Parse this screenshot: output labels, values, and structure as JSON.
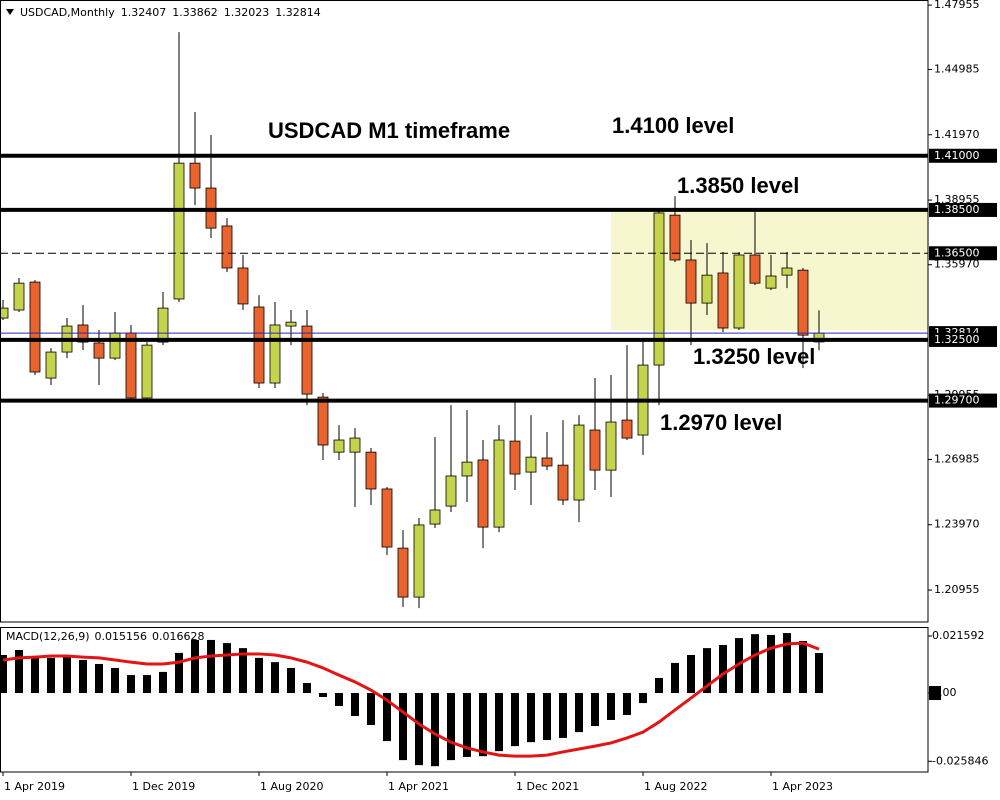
{
  "chart_data": {
    "type": "candlestick",
    "title": "USDCAD M1 timeframe",
    "symbol": "USDCAD,Monthly",
    "categories": [
      "1 Apr 2019",
      null,
      null,
      null,
      null,
      null,
      null,
      null,
      "1 Dec 2019",
      null,
      null,
      null,
      null,
      null,
      null,
      null,
      "1 Aug 2020",
      null,
      null,
      null,
      null,
      null,
      null,
      null,
      "1 Apr 2021",
      null,
      null,
      null,
      null,
      null,
      null,
      null,
      "1 Dec 2021",
      null,
      null,
      null,
      null,
      null,
      null,
      null,
      "1 Aug 2022",
      null,
      null,
      null,
      null,
      null,
      null,
      null,
      "1 Apr 2023",
      null,
      null,
      null
    ],
    "open": [
      1.3351,
      1.3388,
      1.3517,
      1.3074,
      1.3194,
      1.3319,
      1.3236,
      1.3166,
      1.3282,
      1.2982,
      1.324,
      1.3439,
      1.4066,
      1.3951,
      1.3776,
      1.3582,
      1.3402,
      1.3051,
      1.3314,
      1.3314,
      1.2986,
      1.2732,
      1.2732,
      1.2732,
      1.2562,
      1.2289,
      1.2063,
      1.24,
      1.2483,
      1.2622,
      1.2696,
      1.2386,
      1.2783,
      1.264,
      1.2705,
      1.2672,
      1.2511,
      1.2834,
      1.2649,
      1.288,
      1.2811,
      1.3134,
      1.3826,
      1.3619,
      1.342,
      1.3559,
      1.3305,
      1.3642,
      1.3489,
      1.3549,
      1.3572,
      1.32407
    ],
    "high": [
      1.3434,
      1.3536,
      1.3526,
      1.3212,
      1.3351,
      1.3411,
      1.3296,
      1.3379,
      1.3319,
      1.324,
      1.3471,
      1.4671,
      1.4302,
      1.4196,
      1.3812,
      1.3642,
      1.3457,
      1.3425,
      1.3388,
      1.3388,
      1.3005,
      1.2857,
      1.2843,
      1.2751,
      1.2571,
      1.2372,
      1.2428,
      1.2802,
      1.2949,
      1.2926,
      1.2788,
      1.2857,
      1.2963,
      1.2903,
      1.2825,
      1.288,
      1.2903,
      1.3074,
      1.3088,
      1.3226,
      1.3249,
      1.3849,
      1.3914,
      1.3711,
      1.3697,
      1.3656,
      1.3656,
      1.384,
      1.3642,
      1.3656,
      1.3582,
      1.33862
    ],
    "low": [
      1.3342,
      1.3379,
      1.3088,
      1.3042,
      1.3166,
      1.3203,
      1.3042,
      1.3157,
      1.2972,
      1.2972,
      1.3226,
      1.3425,
      1.3872,
      1.372,
      1.3563,
      1.3388,
      1.3028,
      1.3028,
      1.3226,
      1.2949,
      1.2696,
      1.2696,
      1.2479,
      1.2488,
      1.2257,
      1.2017,
      1.2012,
      1.2382,
      1.2456,
      1.2502,
      1.2289,
      1.2363,
      1.2557,
      1.2488,
      1.2649,
      1.2488,
      1.2409,
      1.2557,
      1.2525,
      1.2788,
      1.2719,
      1.2949,
      1.3609,
      1.3226,
      1.3365,
      1.3286,
      1.3296,
      1.3503,
      1.348,
      1.3489,
      1.312,
      1.32023
    ],
    "close": [
      1.3397,
      1.3512,
      1.3102,
      1.3194,
      1.3314,
      1.324,
      1.3166,
      1.3282,
      1.2982,
      1.3226,
      1.3397,
      1.4066,
      1.3951,
      1.3766,
      1.3582,
      1.3416,
      1.3051,
      1.3319,
      1.3332,
      1.3,
      1.2765,
      1.2788,
      1.2797,
      1.2562,
      1.2294,
      1.2063,
      1.2396,
      1.2465,
      1.2622,
      1.2686,
      1.2386,
      1.2788,
      1.2631,
      1.2709,
      1.2668,
      1.2511,
      1.2857,
      1.2649,
      1.2871,
      1.2797,
      1.3134,
      1.3836,
      1.3619,
      1.342,
      1.3549,
      1.3305,
      1.3642,
      1.3512,
      1.3545,
      1.3582,
      1.3272,
      1.32814
    ],
    "colors": {
      "up": "#c6d34c",
      "down": "#e8632e",
      "zone": "#f7f7cf",
      "price_line": "#2a2aa8"
    },
    "ylim": [
      1.1948,
      1.4819
    ],
    "yticks": [
      1.47955,
      1.44985,
      {
        "value": 1.4197,
        "label": "1.41970"
      },
      1.38955,
      {
        "value": 1.3597,
        "label": "1.35970"
      },
      1.29955,
      1.26985,
      {
        "value": 1.2397,
        "label": "1.23970"
      },
      1.20955
    ],
    "levels": [
      {
        "value": 1.41,
        "label": "1.41000",
        "text": "1.4100 level",
        "style": "solid"
      },
      {
        "value": 1.385,
        "label": "1.38500",
        "text": "1.3850 level",
        "style": "solid"
      },
      {
        "value": 1.365,
        "label": "1.36500",
        "style": "dashed"
      },
      {
        "value": 1.325,
        "label": "1.32500",
        "text": "1.3250 level",
        "style": "solid"
      },
      {
        "value": 1.297,
        "label": "1.29700",
        "text": "1.2970 level",
        "style": "solid"
      }
    ],
    "zone": [
      1.3295,
      1.385
    ],
    "indicator": {
      "type": "macd",
      "name": "MACD(12,26,9)",
      "histogram": [
        0.0144,
        0.0163,
        0.014,
        0.0133,
        0.014,
        0.0125,
        0.011,
        0.0095,
        0.0068,
        0.0068,
        0.008,
        0.0152,
        0.0201,
        0.0201,
        0.0189,
        0.017,
        0.0133,
        0.0117,
        0.0095,
        0.0038,
        -0.0015,
        -0.0049,
        -0.0087,
        -0.0121,
        -0.0182,
        -0.0254,
        -0.0273,
        -0.0277,
        -0.0254,
        -0.0242,
        -0.0239,
        -0.022,
        -0.0201,
        -0.0186,
        -0.0178,
        -0.017,
        -0.0148,
        -0.0125,
        -0.0102,
        -0.0083,
        -0.0038,
        0.0057,
        0.0114,
        0.0144,
        0.017,
        0.0182,
        0.0208,
        0.0223,
        0.022,
        0.0227,
        0.0197,
        0.015156
      ],
      "signal": [
        0.0125,
        0.0133,
        0.0136,
        0.014,
        0.014,
        0.0136,
        0.0133,
        0.0125,
        0.0117,
        0.011,
        0.011,
        0.0117,
        0.0133,
        0.014,
        0.0144,
        0.0148,
        0.0148,
        0.0144,
        0.0133,
        0.0117,
        0.0095,
        0.0068,
        0.0042,
        0.0011,
        -0.0027,
        -0.0072,
        -0.0117,
        -0.0155,
        -0.0186,
        -0.0208,
        -0.0223,
        -0.0235,
        -0.0239,
        -0.0239,
        -0.0235,
        -0.0223,
        -0.0212,
        -0.0201,
        -0.0189,
        -0.017,
        -0.0148,
        -0.011,
        -0.0064,
        -0.0019,
        0.0027,
        0.0072,
        0.011,
        0.0144,
        0.017,
        0.0186,
        0.0189,
        0.016628
      ],
      "histogram_color": "#000000",
      "signal_color": "#e41414",
      "ylim": [
        -0.0299,
        0.025
      ],
      "yticks": [
        0.021592,
        {
          "value": 0,
          "label": "0.00"
        },
        -0.025846
      ]
    }
  }
}
